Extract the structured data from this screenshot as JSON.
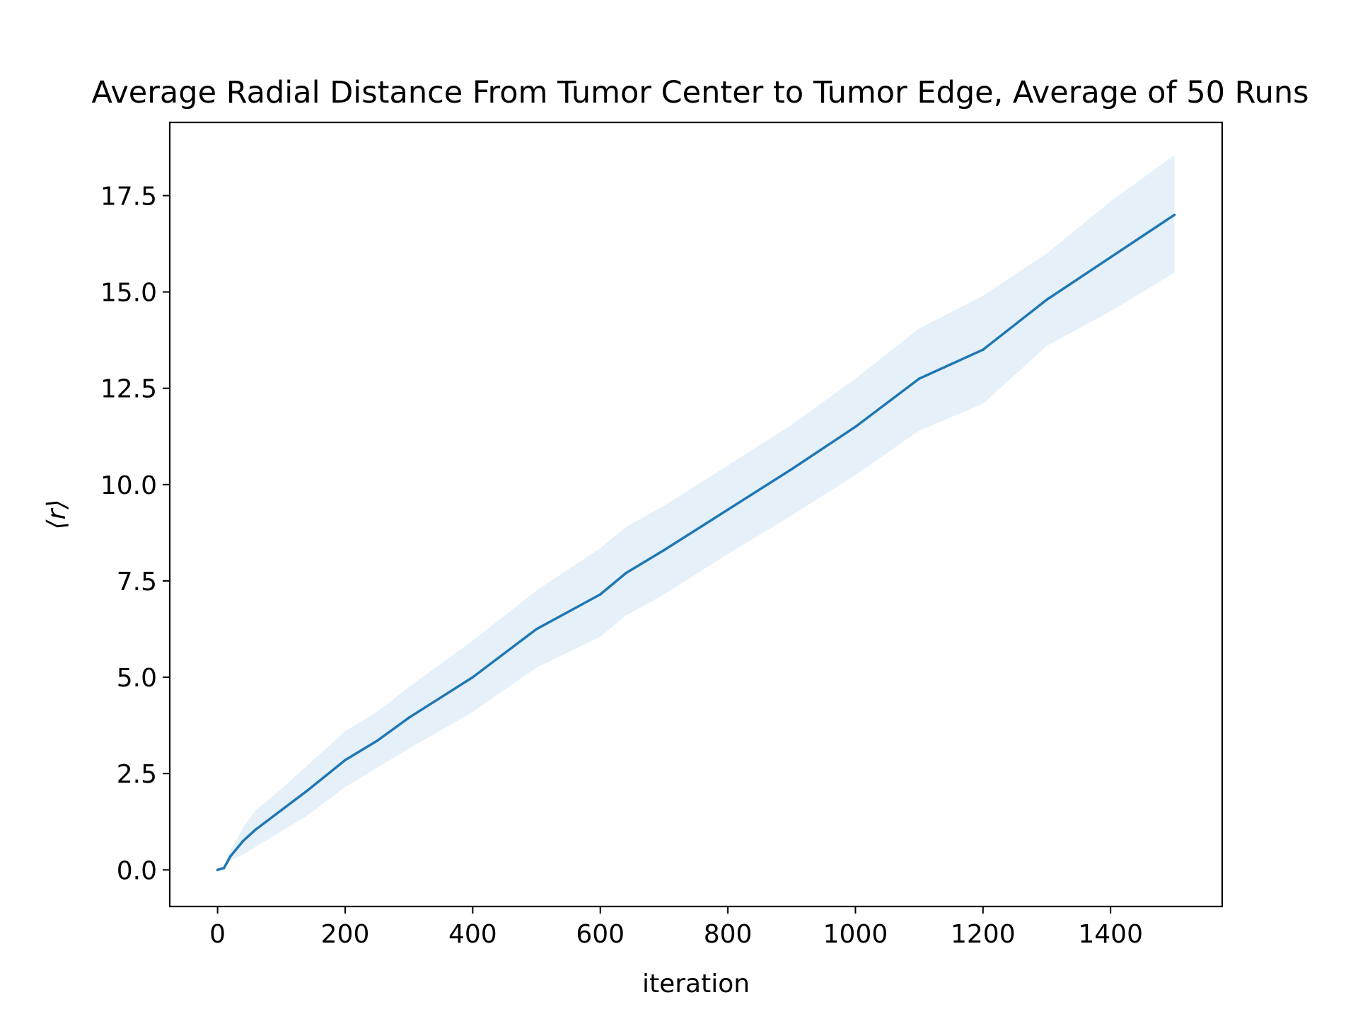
{
  "chart_data": {
    "type": "line",
    "title": "Average Radial Distance From Tumor Center to Tumor Edge, Average of 50 Runs",
    "xlabel": "iteration",
    "ylabel": "⟨r⟩",
    "xlim": [
      -75,
      1575
    ],
    "ylim": [
      -0.95,
      19.4
    ],
    "xticks": [
      0,
      200,
      400,
      600,
      800,
      1000,
      1200,
      1400
    ],
    "xtick_labels": [
      "0",
      "200",
      "400",
      "600",
      "800",
      "1000",
      "1200",
      "1400"
    ],
    "yticks": [
      0.0,
      2.5,
      5.0,
      7.5,
      10.0,
      12.5,
      15.0,
      17.5
    ],
    "ytick_labels": [
      "0.0",
      "2.5",
      "5.0",
      "7.5",
      "10.0",
      "12.5",
      "15.0",
      "17.5"
    ],
    "grid": false,
    "legend": "none",
    "series": [
      {
        "mean_color": "#1f77b4",
        "band_color": "#e6f0f8",
        "points": [
          {
            "x": 0,
            "mean": 0.0,
            "lower": 0.0,
            "upper": 0.0
          },
          {
            "x": 10,
            "mean": 0.05,
            "lower": 0.03,
            "upper": 0.1
          },
          {
            "x": 20,
            "mean": 0.35,
            "lower": 0.25,
            "upper": 0.5
          },
          {
            "x": 40,
            "mean": 0.75,
            "lower": 0.4,
            "upper": 1.1
          },
          {
            "x": 60,
            "mean": 1.05,
            "lower": 0.6,
            "upper": 1.55
          },
          {
            "x": 100,
            "mean": 1.55,
            "lower": 1.0,
            "upper": 2.1
          },
          {
            "x": 140,
            "mean": 2.05,
            "lower": 1.4,
            "upper": 2.7
          },
          {
            "x": 200,
            "mean": 2.85,
            "lower": 2.15,
            "upper": 3.6
          },
          {
            "x": 250,
            "mean": 3.35,
            "lower": 2.65,
            "upper": 4.1
          },
          {
            "x": 300,
            "mean": 3.95,
            "lower": 3.15,
            "upper": 4.75
          },
          {
            "x": 400,
            "mean": 5.0,
            "lower": 4.1,
            "upper": 5.95
          },
          {
            "x": 500,
            "mean": 6.25,
            "lower": 5.25,
            "upper": 7.25
          },
          {
            "x": 600,
            "mean": 7.15,
            "lower": 6.05,
            "upper": 8.35
          },
          {
            "x": 640,
            "mean": 7.7,
            "lower": 6.6,
            "upper": 8.9
          },
          {
            "x": 700,
            "mean": 8.3,
            "lower": 7.15,
            "upper": 9.45
          },
          {
            "x": 800,
            "mean": 9.35,
            "lower": 8.2,
            "upper": 10.5
          },
          {
            "x": 900,
            "mean": 10.4,
            "lower": 9.2,
            "upper": 11.55
          },
          {
            "x": 1000,
            "mean": 11.5,
            "lower": 10.25,
            "upper": 12.75
          },
          {
            "x": 1100,
            "mean": 12.75,
            "lower": 11.4,
            "upper": 14.05
          },
          {
            "x": 1200,
            "mean": 13.5,
            "lower": 12.1,
            "upper": 14.9
          },
          {
            "x": 1300,
            "mean": 14.8,
            "lower": 13.6,
            "upper": 16.0
          },
          {
            "x": 1400,
            "mean": 15.9,
            "lower": 14.5,
            "upper": 17.35
          },
          {
            "x": 1500,
            "mean": 17.0,
            "lower": 15.5,
            "upper": 18.55
          }
        ]
      }
    ]
  }
}
